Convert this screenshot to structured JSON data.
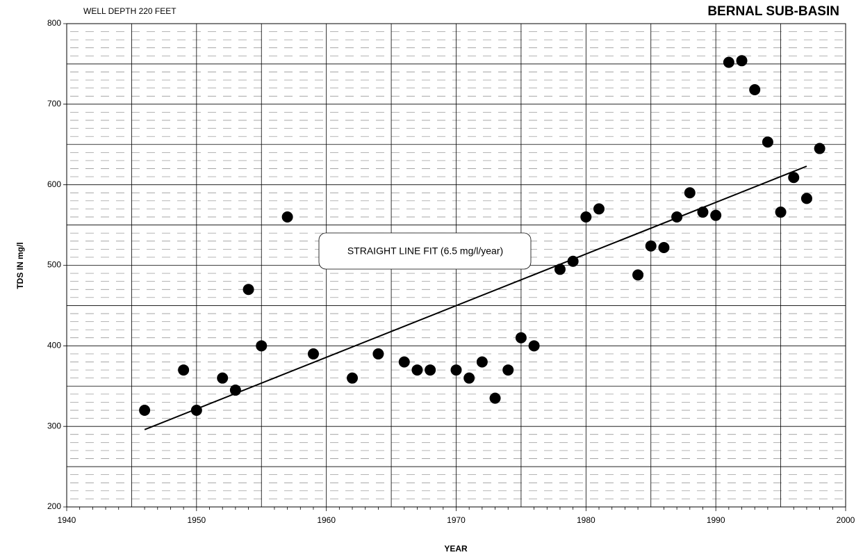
{
  "chart_data": {
    "type": "scatter",
    "title": "BERNAL SUB-BASIN",
    "subtitle": "WELL DEPTH 220 FEET",
    "xlabel": "YEAR",
    "ylabel": "TDS IN mg/l",
    "annotation": "STRAIGHT LINE FIT (6.5 mg/l/year)",
    "xlim": [
      1940,
      2000
    ],
    "xticks": [
      1940,
      1950,
      1960,
      1970,
      1980,
      1990,
      2000
    ],
    "ylim": [
      200,
      800
    ],
    "yticks": [
      200,
      300,
      400,
      500,
      600,
      700,
      800
    ],
    "grid": true,
    "color": "#000000",
    "x": [
      1946,
      1949,
      1950,
      1952,
      1953,
      1954,
      1955,
      1957,
      1959,
      1962,
      1964,
      1966,
      1967,
      1968,
      1970,
      1971,
      1972,
      1973,
      1974,
      1975,
      1976,
      1978,
      1979,
      1980,
      1981,
      1984,
      1985,
      1986,
      1987,
      1988,
      1989,
      1990,
      1991,
      1992,
      1993,
      1994,
      1995,
      1996,
      1997,
      1998
    ],
    "values": [
      320,
      370,
      320,
      360,
      345,
      470,
      400,
      560,
      390,
      360,
      390,
      380,
      370,
      370,
      370,
      360,
      380,
      335,
      370,
      410,
      400,
      495,
      505,
      560,
      570,
      488,
      524,
      522,
      560,
      590,
      566,
      562,
      752,
      754,
      718,
      653,
      566,
      609,
      583,
      645
    ],
    "fit": {
      "x": [
        1946,
        1997
      ],
      "values": [
        296,
        623
      ]
    }
  }
}
